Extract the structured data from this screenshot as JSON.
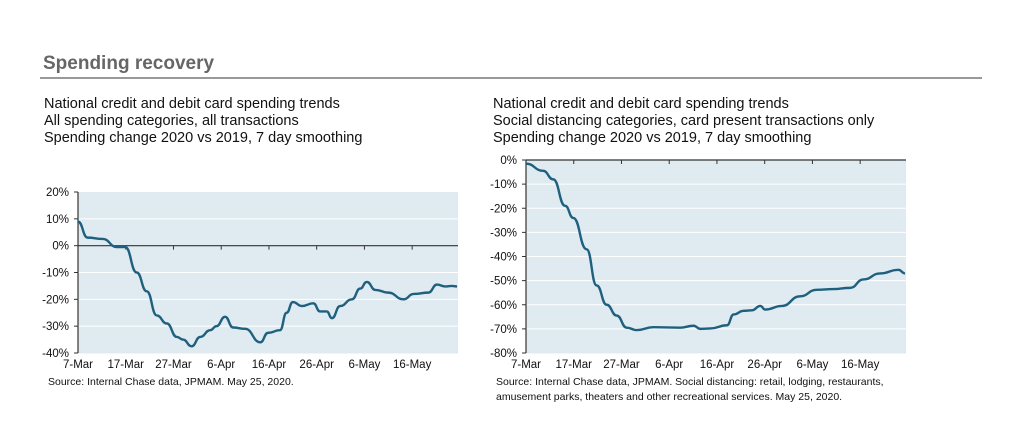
{
  "header": {
    "title": "Spending recovery"
  },
  "colors": {
    "plot_bg": "#dfebf1",
    "line": "#1f607f",
    "grid": "#ffffff",
    "axis": "#333333"
  },
  "chart_data": [
    {
      "type": "line",
      "title_lines": [
        "National credit and debit card spending trends",
        "All spending categories, all transactions",
        "Spending change 2020 vs 2019, 7 day smoothing"
      ],
      "source": [
        "Source:  Internal Chase data, JPMAM. May 25, 2020."
      ],
      "xlabel": "",
      "ylabel": "",
      "x_unit": "days since 7-Mar-2020",
      "xlim": [
        0,
        79.6
      ],
      "ylim": [
        -40,
        20
      ],
      "yticks": [
        20,
        10,
        0,
        -10,
        -20,
        -30,
        -40
      ],
      "ytick_labels": [
        "20%",
        "10%",
        "0%",
        "-10%",
        "-20%",
        "-30%",
        "-40%"
      ],
      "xticks": [
        0,
        10,
        20,
        30,
        40,
        50,
        60,
        70
      ],
      "xtick_labels": [
        "7-Mar",
        "17-Mar",
        "27-Mar",
        "6-Apr",
        "16-Apr",
        "26-Apr",
        "6-May",
        "16-May"
      ],
      "grid": true,
      "legend": "none",
      "series": [
        {
          "name": "Spending change",
          "x": [
            0,
            2,
            5.2,
            8.1,
            9.9,
            12.3,
            14.4,
            16.5,
            18.6,
            20.7,
            22,
            23.8,
            25.6,
            27.7,
            29,
            30.8,
            32.5,
            35,
            38.2,
            39.8,
            42.3,
            43.7,
            45,
            46.9,
            49.3,
            50.7,
            52.1,
            53.2,
            54.9,
            57.4,
            59.1,
            60.5,
            62.3,
            65,
            68.2,
            70.3,
            73.4,
            75.2,
            76.9,
            78.3,
            79.4
          ],
          "y": [
            9,
            3,
            2.5,
            -0.5,
            -0.5,
            -10,
            -17,
            -26,
            -29,
            -34,
            -35,
            -37.5,
            -34,
            -31.5,
            -30,
            -26.5,
            -30.5,
            -31,
            -36,
            -32.5,
            -31.5,
            -25,
            -21,
            -22.5,
            -21.5,
            -24.5,
            -24.5,
            -27,
            -22.5,
            -20,
            -16,
            -13.5,
            -16.5,
            -17.5,
            -20,
            -18,
            -17.5,
            -14.5,
            -15.2,
            -15,
            -15.2
          ]
        }
      ]
    },
    {
      "type": "line",
      "title_lines": [
        "National credit and debit card spending trends",
        "Social distancing categories, card present transactions only",
        "Spending change 2020 vs 2019, 7 day smoothing"
      ],
      "source": [
        "Source:  Internal Chase data, JPMAM. Social distancing: retail, lodging, restaurants,",
        "amusement parks, theaters and other recreational services. May 25, 2020."
      ],
      "xlabel": "",
      "ylabel": "",
      "x_unit": "days since 7-Mar-2020",
      "xlim": [
        0,
        79.6
      ],
      "ylim": [
        -80,
        0
      ],
      "yticks": [
        0,
        -10,
        -20,
        -30,
        -40,
        -50,
        -60,
        -70,
        -80
      ],
      "ytick_labels": [
        "0%",
        "-10%",
        "-20%",
        "-30%",
        "-40%",
        "-50%",
        "-60%",
        "-70%",
        "-80%"
      ],
      "xticks": [
        0,
        10,
        20,
        30,
        40,
        50,
        60,
        70
      ],
      "xtick_labels": [
        "7-Mar",
        "17-Mar",
        "27-Mar",
        "6-Apr",
        "16-Apr",
        "26-Apr",
        "6-May",
        "16-May"
      ],
      "grid": true,
      "legend": "none",
      "series": [
        {
          "name": "Spending change",
          "x": [
            0,
            3.6,
            5.7,
            8.2,
            9.9,
            12.7,
            14.8,
            16.9,
            19,
            21.1,
            23.2,
            26.7,
            32.3,
            35.1,
            36.5,
            38.6,
            42.1,
            43.5,
            45.6,
            47.3,
            49.1,
            50.1,
            53.6,
            57.4,
            60.9,
            64.4,
            67.9,
            70.7,
            74.2,
            78,
            79.4
          ],
          "y": [
            -1.5,
            -4.5,
            -8,
            -19,
            -24,
            -37,
            -52,
            -60,
            -64.5,
            -69.5,
            -70.5,
            -69.3,
            -69.5,
            -68.7,
            -70,
            -69.8,
            -68.5,
            -64,
            -62.5,
            -62.3,
            -60.5,
            -62,
            -60.5,
            -56.5,
            -53.8,
            -53.5,
            -53,
            -49.5,
            -47,
            -45.5,
            -47
          ]
        }
      ]
    }
  ]
}
